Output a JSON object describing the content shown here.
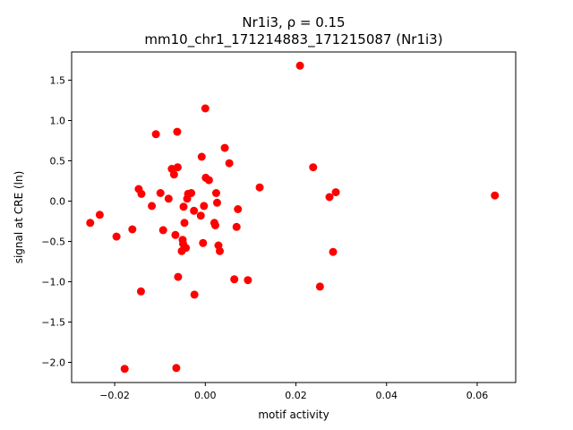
{
  "chart_data": {
    "type": "scatter",
    "title_line1": "Nr1i3, ρ = 0.15",
    "title_line2": "mm10_chr1_171214883_171215087 (Nr1i3)",
    "xlabel": "motif activity",
    "ylabel": "signal at CRE (ln)",
    "xlim": [
      -0.0295,
      0.0685
    ],
    "ylim": [
      -2.25,
      1.85
    ],
    "xticks": [
      -0.02,
      0.0,
      0.02,
      0.04,
      0.06
    ],
    "xtick_labels": [
      "−0.02",
      "0.00",
      "0.02",
      "0.04",
      "0.06"
    ],
    "yticks": [
      -2.0,
      -1.5,
      -1.0,
      -0.5,
      0.0,
      0.5,
      1.0,
      1.5
    ],
    "ytick_labels": [
      "−2.0",
      "−1.5",
      "−1.0",
      "−0.5",
      "0.0",
      "0.5",
      "1.0",
      "1.5"
    ],
    "grid": false,
    "marker_color": "#ff0000",
    "points": [
      {
        "x": -0.0254,
        "y": -0.27
      },
      {
        "x": -0.0233,
        "y": -0.17
      },
      {
        "x": -0.0196,
        "y": -0.44
      },
      {
        "x": -0.0178,
        "y": -2.08
      },
      {
        "x": -0.0161,
        "y": -0.35
      },
      {
        "x": -0.0147,
        "y": 0.15
      },
      {
        "x": -0.0141,
        "y": 0.09
      },
      {
        "x": -0.0142,
        "y": -1.12
      },
      {
        "x": -0.0118,
        "y": -0.06
      },
      {
        "x": -0.0109,
        "y": 0.83
      },
      {
        "x": -0.0099,
        "y": 0.1
      },
      {
        "x": -0.0093,
        "y": -0.36
      },
      {
        "x": -0.0081,
        "y": 0.03
      },
      {
        "x": -0.0074,
        "y": 0.4
      },
      {
        "x": -0.0069,
        "y": 0.33
      },
      {
        "x": -0.0066,
        "y": -0.42
      },
      {
        "x": -0.0064,
        "y": -2.07
      },
      {
        "x": -0.0062,
        "y": 0.86
      },
      {
        "x": -0.0061,
        "y": 0.42
      },
      {
        "x": -0.006,
        "y": -0.94
      },
      {
        "x": -0.0052,
        "y": -0.62
      },
      {
        "x": -0.005,
        "y": -0.48
      },
      {
        "x": -0.0049,
        "y": -0.53
      },
      {
        "x": -0.0048,
        "y": -0.07
      },
      {
        "x": -0.0046,
        "y": -0.27
      },
      {
        "x": -0.0043,
        "y": -0.58
      },
      {
        "x": -0.004,
        "y": 0.03
      },
      {
        "x": -0.0038,
        "y": 0.09
      },
      {
        "x": -0.0031,
        "y": 0.1
      },
      {
        "x": -0.0025,
        "y": -0.12
      },
      {
        "x": -0.0024,
        "y": -1.16
      },
      {
        "x": -0.001,
        "y": -0.18
      },
      {
        "x": -0.0008,
        "y": 0.55
      },
      {
        "x": -0.0005,
        "y": -0.52
      },
      {
        "x": -0.0003,
        "y": -0.06
      },
      {
        "x": 0.0,
        "y": 1.15
      },
      {
        "x": 0.0001,
        "y": 0.29
      },
      {
        "x": 0.0008,
        "y": 0.26
      },
      {
        "x": 0.002,
        "y": -0.27
      },
      {
        "x": 0.0022,
        "y": -0.3
      },
      {
        "x": 0.0024,
        "y": 0.1
      },
      {
        "x": 0.0026,
        "y": -0.02
      },
      {
        "x": 0.0029,
        "y": -0.55
      },
      {
        "x": 0.0032,
        "y": -0.62
      },
      {
        "x": 0.0043,
        "y": 0.66
      },
      {
        "x": 0.0053,
        "y": 0.47
      },
      {
        "x": 0.0064,
        "y": -0.97
      },
      {
        "x": 0.0069,
        "y": -0.32
      },
      {
        "x": 0.0072,
        "y": -0.1
      },
      {
        "x": 0.0094,
        "y": -0.98
      },
      {
        "x": 0.012,
        "y": 0.17
      },
      {
        "x": 0.0209,
        "y": 1.68
      },
      {
        "x": 0.0238,
        "y": 0.42
      },
      {
        "x": 0.0253,
        "y": -1.06
      },
      {
        "x": 0.0274,
        "y": 0.05
      },
      {
        "x": 0.0282,
        "y": -0.63
      },
      {
        "x": 0.0288,
        "y": 0.11
      },
      {
        "x": 0.0639,
        "y": 0.07
      }
    ]
  }
}
